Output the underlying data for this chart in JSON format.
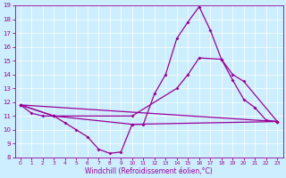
{
  "xlabel": "Windchill (Refroidissement éolien,°C)",
  "bg_color": "#cceeff",
  "line_color": "#990099",
  "ylim": [
    8,
    19
  ],
  "xlim": [
    -0.5,
    23.5
  ],
  "yticks": [
    8,
    9,
    10,
    11,
    12,
    13,
    14,
    15,
    16,
    17,
    18,
    19
  ],
  "xticks": [
    0,
    1,
    2,
    3,
    4,
    5,
    6,
    7,
    8,
    9,
    10,
    11,
    12,
    13,
    14,
    15,
    16,
    17,
    18,
    19,
    20,
    21,
    22,
    23
  ],
  "line1_x": [
    0,
    1,
    2,
    3,
    4,
    5,
    6,
    7,
    8,
    9,
    10,
    11,
    12,
    13,
    14,
    15,
    16,
    17,
    18,
    19,
    20,
    21,
    22,
    23
  ],
  "line1_y": [
    11.8,
    11.2,
    11.0,
    11.0,
    10.5,
    10.0,
    9.5,
    8.6,
    8.3,
    8.4,
    10.4,
    10.4,
    12.6,
    14.0,
    16.6,
    17.8,
    18.9,
    17.2,
    15.1,
    13.6,
    12.2,
    11.6,
    10.7,
    10.6
  ],
  "line2_x": [
    0,
    3,
    10,
    14,
    15,
    16,
    18,
    19,
    20,
    23
  ],
  "line2_y": [
    11.8,
    11.0,
    11.0,
    13.0,
    14.0,
    15.2,
    15.1,
    14.0,
    13.5,
    10.6
  ],
  "line3_x": [
    0,
    23
  ],
  "line3_y": [
    11.8,
    10.6
  ],
  "line4_x": [
    0,
    3,
    10,
    23
  ],
  "line4_y": [
    11.8,
    11.0,
    10.4,
    10.6
  ]
}
